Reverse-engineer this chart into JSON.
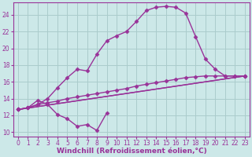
{
  "background_color": "#cce8e8",
  "grid_color": "#aacccc",
  "line_color": "#993399",
  "marker": "D",
  "markersize": 2.5,
  "linewidth": 1.0,
  "xlim": [
    -0.5,
    23.5
  ],
  "ylim": [
    9.5,
    25.5
  ],
  "xticks": [
    0,
    1,
    2,
    3,
    4,
    5,
    6,
    7,
    8,
    9,
    10,
    11,
    12,
    13,
    14,
    15,
    16,
    17,
    18,
    19,
    20,
    21,
    22,
    23
  ],
  "yticks": [
    10,
    12,
    14,
    16,
    18,
    20,
    22,
    24
  ],
  "xlabel": "Windchill (Refroidissement éolien,°C)",
  "xlabel_fontsize": 6.5,
  "tick_fontsize": 5.5,
  "series": [
    {
      "x": [
        0,
        1,
        2,
        3,
        4,
        5,
        6,
        7,
        8,
        9
      ],
      "y": [
        12.7,
        12.9,
        13.8,
        13.3,
        12.1,
        11.6,
        10.7,
        10.9,
        10.2,
        12.3
      ]
    },
    {
      "x": [
        0,
        23
      ],
      "y": [
        12.7,
        16.7
      ]
    },
    {
      "x": [
        0,
        23
      ],
      "y": [
        12.7,
        16.7
      ]
    },
    {
      "x": [
        0,
        1,
        2,
        3,
        4,
        5,
        6,
        7,
        8,
        9,
        10,
        11,
        12,
        13,
        14,
        15,
        16,
        17,
        18,
        19,
        20,
        21,
        22,
        23
      ],
      "y": [
        12.7,
        12.9,
        13.3,
        13.5,
        13.7,
        14.0,
        14.2,
        14.4,
        14.6,
        14.8,
        15.0,
        15.2,
        15.5,
        15.7,
        15.9,
        16.1,
        16.3,
        16.5,
        16.6,
        16.7,
        16.7,
        16.7,
        16.7,
        16.7
      ]
    },
    {
      "x": [
        0,
        1,
        2,
        3,
        4,
        5,
        6,
        7,
        8,
        9,
        10,
        11,
        12,
        13,
        14,
        15,
        16,
        17,
        18,
        19,
        20,
        21,
        22
      ],
      "y": [
        12.7,
        12.9,
        13.3,
        14.0,
        15.3,
        16.5,
        17.5,
        17.3,
        19.3,
        20.9,
        21.5,
        22.0,
        23.2,
        24.5,
        24.9,
        25.0,
        24.9,
        24.2,
        21.4,
        18.7,
        17.5,
        16.7,
        16.7
      ]
    }
  ]
}
